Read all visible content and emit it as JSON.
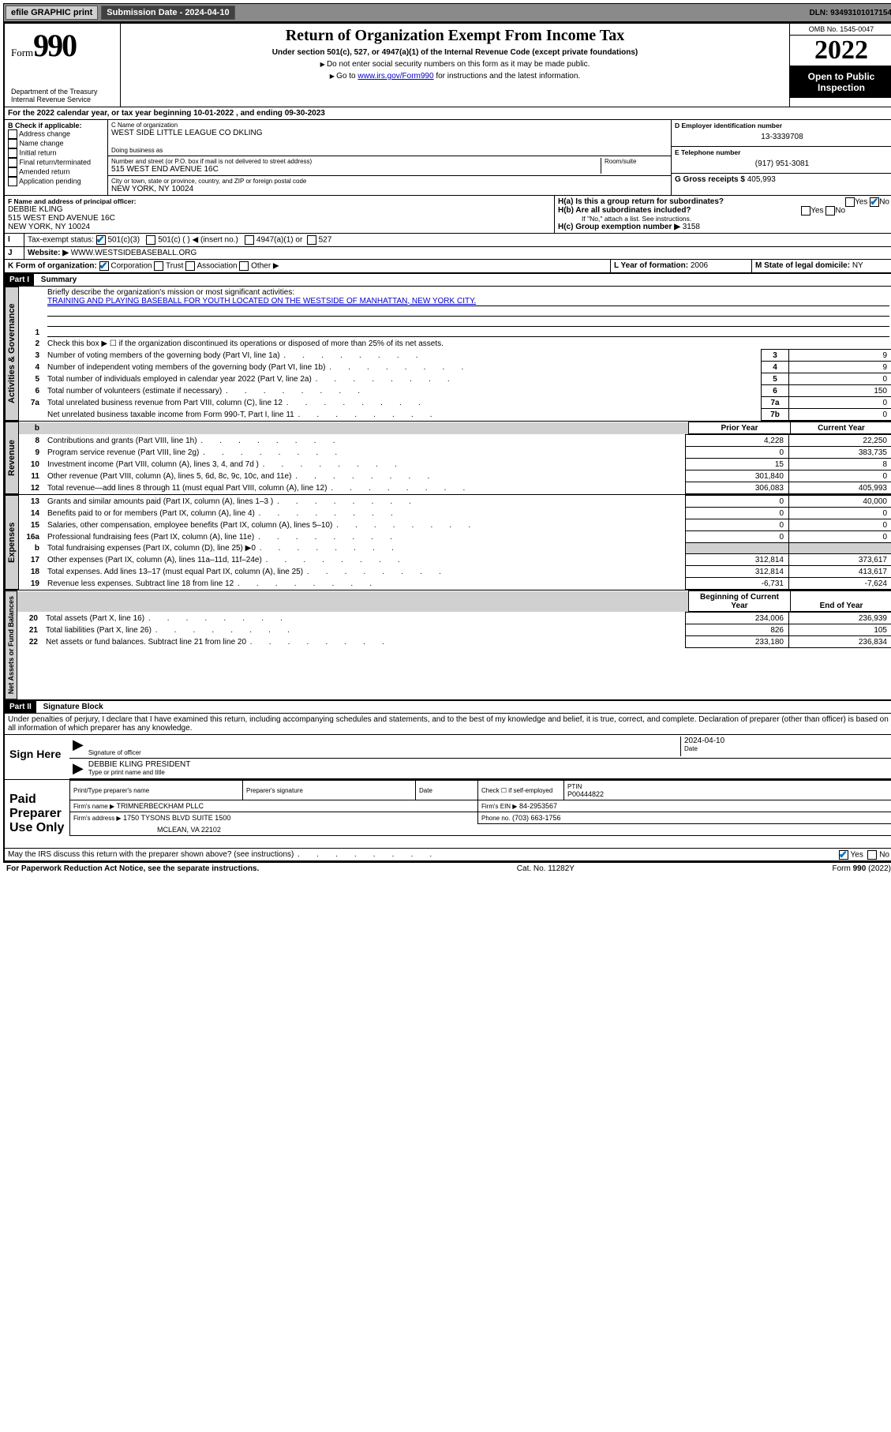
{
  "topbar": {
    "efile": "efile GRAPHIC print",
    "submission_label": "Submission Date - 2024-04-10",
    "dln_label": "DLN: 93493101017154"
  },
  "header": {
    "form_prefix": "Form",
    "form_num": "990",
    "dept": "Department of the Treasury\nInternal Revenue Service",
    "title": "Return of Organization Exempt From Income Tax",
    "subtitle": "Under section 501(c), 527, or 4947(a)(1) of the Internal Revenue Code (except private foundations)",
    "note1": "Do not enter social security numbers on this form as it may be made public.",
    "note2_pre": "Go to ",
    "note2_link": "www.irs.gov/Form990",
    "note2_post": " for instructions and the latest information.",
    "omb": "OMB No. 1545-0047",
    "year": "2022",
    "open": "Open to Public Inspection"
  },
  "line_a": "For the 2022 calendar year, or tax year beginning 10-01-2022    , and ending 09-30-2023",
  "b": {
    "label": "B Check if applicable:",
    "opts": [
      "Address change",
      "Name change",
      "Initial return",
      "Final return/terminated",
      "Amended return",
      "Application pending"
    ]
  },
  "c": {
    "name_label": "C Name of organization",
    "name": "WEST SIDE LITTLE LEAGUE CO DKLING",
    "dba_label": "Doing business as",
    "addr_label": "Number and street (or P.O. box if mail is not delivered to street address)",
    "room_label": "Room/suite",
    "addr": "515 WEST END AVENUE 16C",
    "city_label": "City or town, state or province, country, and ZIP or foreign postal code",
    "city": "NEW YORK, NY  10024"
  },
  "d": {
    "label": "D Employer identification number",
    "val": "13-3339708"
  },
  "e": {
    "label": "E Telephone number",
    "val": "(917) 951-3081"
  },
  "g": {
    "label": "G Gross receipts $",
    "val": "405,993"
  },
  "f": {
    "label": "F Name and address of principal officer:",
    "name": "DEBBIE KLING",
    "addr1": "515 WEST END AVENUE 16C",
    "addr2": "NEW YORK, NY  10024"
  },
  "h": {
    "a": "H(a)  Is this a group return for subordinates?",
    "b": "H(b)  Are all subordinates included?",
    "b_note": "If \"No,\" attach a list. See instructions.",
    "c_label": "H(c)  Group exemption number ▶",
    "c_val": "3158",
    "yes": "Yes",
    "no": "No"
  },
  "i": {
    "label": "Tax-exempt status:",
    "o1": "501(c)(3)",
    "o2": "501(c) (   ) ◀ (insert no.)",
    "o3": "4947(a)(1) or",
    "o4": "527"
  },
  "j": {
    "label": "Website: ▶",
    "val": "WWW.WESTSIDEBASEBALL.ORG"
  },
  "k": {
    "label": "K Form of organization:",
    "o1": "Corporation",
    "o2": "Trust",
    "o3": "Association",
    "o4": "Other ▶"
  },
  "l": {
    "label": "L Year of formation:",
    "val": "2006"
  },
  "m": {
    "label": "M State of legal domicile:",
    "val": "NY"
  },
  "part1": {
    "hdr": "Part I",
    "title": "Summary",
    "l1_label": "Briefly describe the organization's mission or most significant activities:",
    "l1_val": "TRAINING AND PLAYING BASEBALL FOR YOUTH LOCATED ON THE WESTSIDE OF MANHATTAN, NEW YORK CITY.",
    "l2": "Check this box ▶ ☐  if the organization discontinued its operations or disposed of more than 25% of its net assets.",
    "lines_gov": [
      {
        "n": "3",
        "t": "Number of voting members of the governing body (Part VI, line 1a)",
        "b": "3",
        "v": "9"
      },
      {
        "n": "4",
        "t": "Number of independent voting members of the governing body (Part VI, line 1b)",
        "b": "4",
        "v": "9"
      },
      {
        "n": "5",
        "t": "Total number of individuals employed in calendar year 2022 (Part V, line 2a)",
        "b": "5",
        "v": "0"
      },
      {
        "n": "6",
        "t": "Total number of volunteers (estimate if necessary)",
        "b": "6",
        "v": "150"
      },
      {
        "n": "7a",
        "t": "Total unrelated business revenue from Part VIII, column (C), line 12",
        "b": "7a",
        "v": "0"
      },
      {
        "n": "",
        "t": "Net unrelated business taxable income from Form 990-T, Part I, line 11",
        "b": "7b",
        "v": "0"
      }
    ],
    "prior": "Prior Year",
    "current": "Current Year",
    "rev": [
      {
        "n": "8",
        "t": "Contributions and grants (Part VIII, line 1h)",
        "p": "4,228",
        "c": "22,250"
      },
      {
        "n": "9",
        "t": "Program service revenue (Part VIII, line 2g)",
        "p": "0",
        "c": "383,735"
      },
      {
        "n": "10",
        "t": "Investment income (Part VIII, column (A), lines 3, 4, and 7d )",
        "p": "15",
        "c": "8"
      },
      {
        "n": "11",
        "t": "Other revenue (Part VIII, column (A), lines 5, 6d, 8c, 9c, 10c, and 11e)",
        "p": "301,840",
        "c": "0"
      },
      {
        "n": "12",
        "t": "Total revenue—add lines 8 through 11 (must equal Part VIII, column (A), line 12)",
        "p": "306,083",
        "c": "405,993"
      }
    ],
    "exp": [
      {
        "n": "13",
        "t": "Grants and similar amounts paid (Part IX, column (A), lines 1–3 )",
        "p": "0",
        "c": "40,000"
      },
      {
        "n": "14",
        "t": "Benefits paid to or for members (Part IX, column (A), line 4)",
        "p": "0",
        "c": "0"
      },
      {
        "n": "15",
        "t": "Salaries, other compensation, employee benefits (Part IX, column (A), lines 5–10)",
        "p": "0",
        "c": "0"
      },
      {
        "n": "16a",
        "t": "Professional fundraising fees (Part IX, column (A), line 11e)",
        "p": "0",
        "c": "0"
      },
      {
        "n": "b",
        "t": "Total fundraising expenses (Part IX, column (D), line 25) ▶0",
        "p": "grey",
        "c": "grey"
      },
      {
        "n": "17",
        "t": "Other expenses (Part IX, column (A), lines 11a–11d, 11f–24e)",
        "p": "312,814",
        "c": "373,617"
      },
      {
        "n": "18",
        "t": "Total expenses. Add lines 13–17 (must equal Part IX, column (A), line 25)",
        "p": "312,814",
        "c": "413,617"
      },
      {
        "n": "19",
        "t": "Revenue less expenses. Subtract line 18 from line 12",
        "p": "-6,731",
        "c": "-7,624"
      }
    ],
    "begin": "Beginning of Current Year",
    "end": "End of Year",
    "net": [
      {
        "n": "20",
        "t": "Total assets (Part X, line 16)",
        "p": "234,006",
        "c": "236,939"
      },
      {
        "n": "21",
        "t": "Total liabilities (Part X, line 26)",
        "p": "826",
        "c": "105"
      },
      {
        "n": "22",
        "t": "Net assets or fund balances. Subtract line 21 from line 20",
        "p": "233,180",
        "c": "236,834"
      }
    ]
  },
  "part2": {
    "hdr": "Part II",
    "title": "Signature Block",
    "decl": "Under penalties of perjury, I declare that I have examined this return, including accompanying schedules and statements, and to the best of my knowledge and belief, it is true, correct, and complete. Declaration of preparer (other than officer) is based on all information of which preparer has any knowledge."
  },
  "sign": {
    "here": "Sign Here",
    "sig_label": "Signature of officer",
    "date_label": "Date",
    "date": "2024-04-10",
    "name": "DEBBIE KLING  PRESIDENT",
    "name_label": "Type or print name and title"
  },
  "paid": {
    "title": "Paid Preparer Use Only",
    "h1": "Print/Type preparer's name",
    "h2": "Preparer's signature",
    "h3": "Date",
    "h4_pre": "Check ☐ if self-employed",
    "h5_label": "PTIN",
    "h5": "P00444822",
    "firm_label": "Firm's name    ▶",
    "firm": "TRIMNERBECKHAM PLLC",
    "ein_label": "Firm's EIN ▶",
    "ein": "84-2953567",
    "addr_label": "Firm's address ▶",
    "addr1": "1750 TYSONS BLVD SUITE 1500",
    "addr2": "MCLEAN, VA  22102",
    "phone_label": "Phone no.",
    "phone": "(703) 663-1756"
  },
  "footer": {
    "discuss": "May the IRS discuss this return with the preparer shown above? (see instructions)",
    "pra": "For Paperwork Reduction Act Notice, see the separate instructions.",
    "cat": "Cat. No. 11282Y",
    "form": "Form 990 (2022)"
  },
  "tabs": {
    "gov": "Activities & Governance",
    "rev": "Revenue",
    "exp": "Expenses",
    "net": "Net Assets or Fund Balances"
  }
}
